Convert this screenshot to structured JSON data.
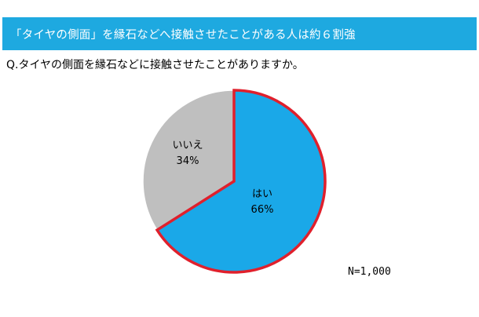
{
  "colors": {
    "banner": "#1ea9e0",
    "slice_yes": "#1aa8e8",
    "slice_no": "#bfbfbf",
    "slice_yes_border": "#e0202c",
    "slice_no_border": "#ffffff"
  },
  "header": {
    "title": "「タイヤの側面」を縁石などへ接触させたことがある人は約６割強"
  },
  "question": "Q.タイヤの側面を縁石などに接触させたことがありますか。",
  "note": "N=1,000",
  "chart_data": {
    "type": "pie",
    "title": "",
    "start_angle_deg": 0,
    "direction": "clockwise",
    "slices": [
      {
        "label": "はい",
        "value": 66,
        "value_label": "66%"
      },
      {
        "label": "いいえ",
        "value": 34,
        "value_label": "34%"
      }
    ],
    "legend": "none"
  }
}
